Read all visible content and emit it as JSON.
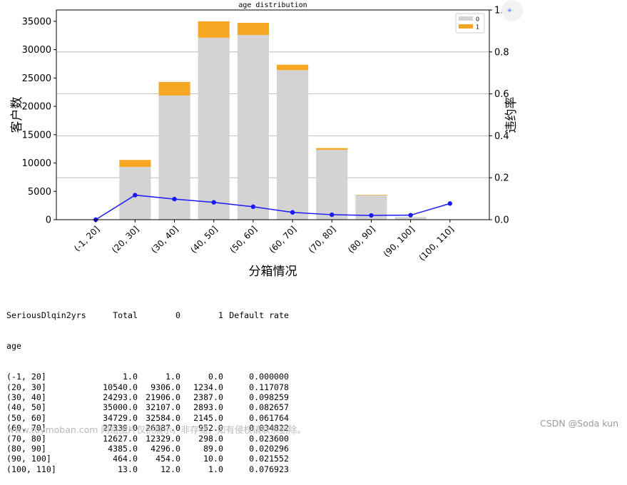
{
  "chart_data": {
    "type": "bar",
    "title": "age distribution",
    "xlabel": "分箱情况",
    "ylabel": "客户数",
    "y2label": "违约率",
    "categories": [
      "(-1, 20]",
      "(20, 30]",
      "(30, 40]",
      "(40, 50]",
      "(50, 60]",
      "(60, 70]",
      "(70, 80]",
      "(80, 90]",
      "(90, 100]",
      "(100, 110]"
    ],
    "series": [
      {
        "name": "0",
        "values": [
          1,
          9306,
          21906,
          32107,
          32584,
          26387,
          12329,
          4296,
          454,
          12
        ],
        "color": "#d3d3d3"
      },
      {
        "name": "1",
        "values": [
          0,
          1234,
          2387,
          2893,
          2145,
          952,
          298,
          89,
          10,
          1
        ],
        "color": "#f5a623"
      }
    ],
    "line": {
      "values": [
        0.0,
        0.117078,
        0.098259,
        0.082657,
        0.061764,
        0.034822,
        0.0236,
        0.020296,
        0.021552,
        0.076923
      ],
      "color": "#1a1aff"
    },
    "ylim": [
      0,
      37000
    ],
    "y2lim": [
      0,
      1.0
    ],
    "yticks": [
      "0",
      "5000",
      "10000",
      "15000",
      "20000",
      "25000",
      "30000",
      "35000"
    ],
    "y2ticks": [
      "0.0",
      "0.2",
      "0.4",
      "0.6",
      "0.8",
      "1.0"
    ],
    "legend": "top-right",
    "grid": "right-axis horizontal"
  },
  "table": {
    "header": [
      "SeriousDlqin2yrs",
      "Total",
      "0",
      "1",
      "Default rate"
    ],
    "index_name": "age",
    "rows": [
      [
        "(-1, 20]",
        "1.0",
        "1.0",
        "0.0",
        "0.000000"
      ],
      [
        "(20, 30]",
        "10540.0",
        "9306.0",
        "1234.0",
        "0.117078"
      ],
      [
        "(30, 40]",
        "24293.0",
        "21906.0",
        "2387.0",
        "0.098259"
      ],
      [
        "(40, 50]",
        "35000.0",
        "32107.0",
        "2893.0",
        "0.082657"
      ],
      [
        "(50, 60]",
        "34729.0",
        "32584.0",
        "2145.0",
        "0.061764"
      ],
      [
        "(60, 70]",
        "27339.0",
        "26387.0",
        "952.0",
        "0.034822"
      ],
      [
        "(70, 80]",
        "12627.0",
        "12329.0",
        "298.0",
        "0.023600"
      ],
      [
        "(80, 90]",
        "4385.0",
        "4296.0",
        "89.0",
        "0.020296"
      ],
      [
        "(90, 100]",
        "464.0",
        "454.0",
        "10.0",
        "0.021552"
      ],
      [
        "(100, 110]",
        "13.0",
        "12.0",
        "1.0",
        "0.076923"
      ]
    ]
  },
  "watermark_left": "www.toymoban.com 网络图片仅供展示，非存储，如有侵权请联系删除。",
  "watermark_right": "CSDN @Soda kun"
}
